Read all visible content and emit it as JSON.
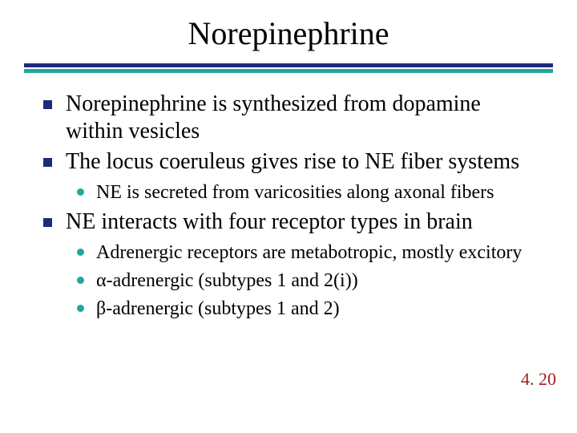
{
  "title": "Norepinephrine",
  "colors": {
    "rule_top": "#1c2c7a",
    "rule_bottom": "#1fa89b",
    "square_bullet": "#1c2c7a",
    "dot_bullet": "#1fa89b",
    "body_text": "#000000",
    "slide_number": "#a02020",
    "background": "#ffffff"
  },
  "typography": {
    "title_fontsize": 40,
    "level1_fontsize": 28,
    "level2_fontsize": 24,
    "font_family": "Times New Roman"
  },
  "bullets": [
    {
      "text": "Norepinephrine is synthesized from dopamine within vesicles",
      "children": []
    },
    {
      "text": "The locus coeruleus gives rise to NE fiber systems",
      "children": [
        {
          "text": "NE is secreted from varicosities along axonal fibers"
        }
      ]
    },
    {
      "text": "NE interacts with four receptor types in brain",
      "children": [
        {
          "text": "Adrenergic receptors are metabotropic, mostly excitory"
        },
        {
          "text": "α-adrenergic (subtypes 1 and 2(i))"
        },
        {
          "text": "β-adrenergic (subtypes 1 and 2)"
        }
      ]
    }
  ],
  "slide_number": "4. 20"
}
